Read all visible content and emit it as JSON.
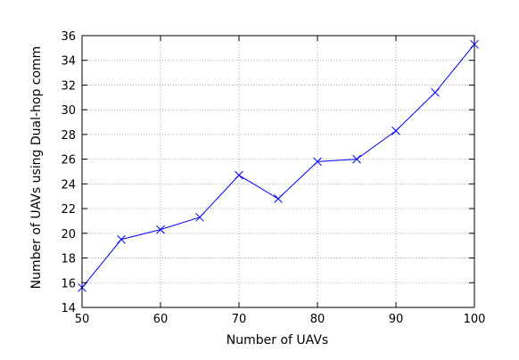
{
  "chart_data": {
    "type": "line",
    "title": "",
    "xlabel": "Number of UAVs",
    "ylabel": "Number of UAVs using Dual-hop comm",
    "xlim": [
      50,
      100
    ],
    "ylim": [
      14,
      36
    ],
    "xticks": [
      50,
      60,
      70,
      80,
      90,
      100
    ],
    "yticks": [
      14,
      16,
      18,
      20,
      22,
      24,
      26,
      28,
      30,
      32,
      34,
      36
    ],
    "grid": true,
    "legend": "none",
    "series": [
      {
        "marker": "x",
        "color": "#0000ff",
        "x": [
          50,
          55,
          60,
          65,
          70,
          75,
          80,
          85,
          90,
          95,
          100
        ],
        "y": [
          15.6,
          19.5,
          20.3,
          21.3,
          24.7,
          22.8,
          25.8,
          26.0,
          28.3,
          31.4,
          35.3
        ]
      }
    ]
  }
}
